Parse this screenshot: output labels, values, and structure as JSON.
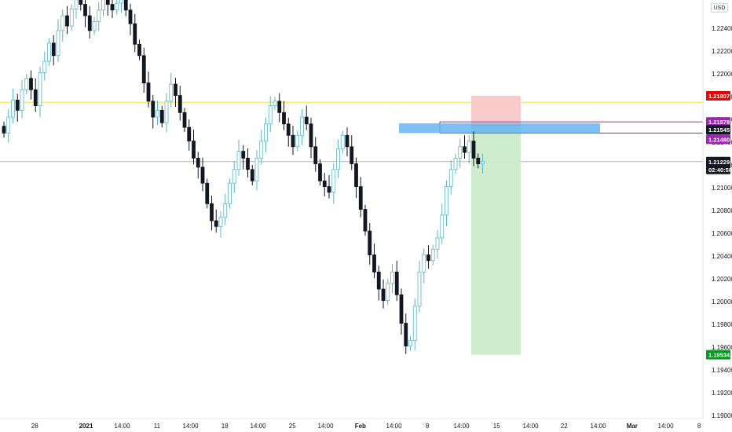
{
  "currency_button": "USD",
  "price_axis_labels": [
    "1.22400",
    "1.22200",
    "1.22000",
    "1.21800",
    "1.21600",
    "1.21400",
    "1.21200",
    "1.21000",
    "1.20800",
    "1.20600",
    "1.20400",
    "1.20200",
    "1.20000",
    "1.19800",
    "1.19600",
    "1.19400",
    "1.19200",
    "1.19000"
  ],
  "time_axis_labels": [
    "28",
    "2021",
    "14:00",
    "11",
    "14:00",
    "18",
    "14:00",
    "25",
    "14:00",
    "Feb",
    "14:00",
    "8",
    "14:00",
    "15",
    "14:00",
    "22",
    "14:00",
    "Mar",
    "14:00",
    "8"
  ],
  "price_tags": {
    "stop_loss": {
      "text": "1.21807",
      "color": "#f00000"
    },
    "upper_zone": {
      "text": "1.21578",
      "color": "#9c27b0"
    },
    "entry": {
      "text": "1.21545",
      "color": "#131722"
    },
    "lower_zone": {
      "text": "1.21480",
      "color": "#9c27b0"
    },
    "current_price": {
      "text": "1.21229",
      "color": "#131722"
    },
    "countdown": {
      "text": "02:40:58",
      "color": "#131722"
    },
    "take_profit": {
      "text": "1.19534",
      "color": "#089a1e"
    }
  },
  "chart_data": {
    "type": "candlestick",
    "symbol_currency": "USD",
    "y_axis_range": [
      1.19,
      1.226
    ],
    "horizontal_lines": [
      {
        "price": 1.2175,
        "color": "#f5e142"
      },
      {
        "price": 1.21229,
        "color": "#b2b5be"
      }
    ],
    "zones": [
      {
        "name": "supply-zone",
        "top": 1.21578,
        "bottom": 1.2148,
        "color": "#9c27b0"
      },
      {
        "name": "entry-marker",
        "top": 1.21565,
        "bottom": 1.2148,
        "color": "#64b5f6"
      }
    ],
    "position": {
      "type": "short",
      "entry": 1.21545,
      "stop_loss": 1.21807,
      "take_profit": 1.19534
    },
    "closes": [
      1.2148,
      1.2162,
      1.2177,
      1.2168,
      1.2186,
      1.2196,
      1.2186,
      1.2172,
      1.2201,
      1.2211,
      1.2227,
      1.2216,
      1.2238,
      1.2251,
      1.2242,
      1.2257,
      1.2265,
      1.2261,
      1.2251,
      1.2238,
      1.2246,
      1.2256,
      1.2268,
      1.2261,
      1.2256,
      1.2262,
      1.2268,
      1.2256,
      1.2244,
      1.2226,
      1.2216,
      1.2192,
      1.2176,
      1.2162,
      1.2168,
      1.2157,
      1.2176,
      1.2191,
      1.2181,
      1.2166,
      1.2153,
      1.2141,
      1.2126,
      1.2118,
      1.2104,
      1.2086,
      1.2071,
      1.2066,
      1.2074,
      1.2086,
      1.2104,
      1.2116,
      1.2132,
      1.2126,
      1.2116,
      1.2106,
      1.2126,
      1.2141,
      1.2156,
      1.2172,
      1.2176,
      1.2166,
      1.2156,
      1.2146,
      1.2136,
      1.2146,
      1.2162,
      1.2156,
      1.2136,
      1.2121,
      1.2106,
      1.2101,
      1.2096,
      1.2116,
      1.2134,
      1.2146,
      1.2136,
      1.2121,
      1.2101,
      1.2081,
      1.2062,
      1.2041,
      1.2026,
      1.2011,
      1.2001,
      1.2016,
      1.2026,
      1.2006,
      1.1981,
      1.1961,
      1.1966,
      1.1996,
      1.2026,
      1.2041,
      1.2036,
      1.2046,
      1.2056,
      1.2076,
      1.2101,
      1.2116,
      1.2126,
      1.2136,
      1.2131,
      1.2141,
      1.2126,
      1.2121,
      1.21229
    ]
  }
}
